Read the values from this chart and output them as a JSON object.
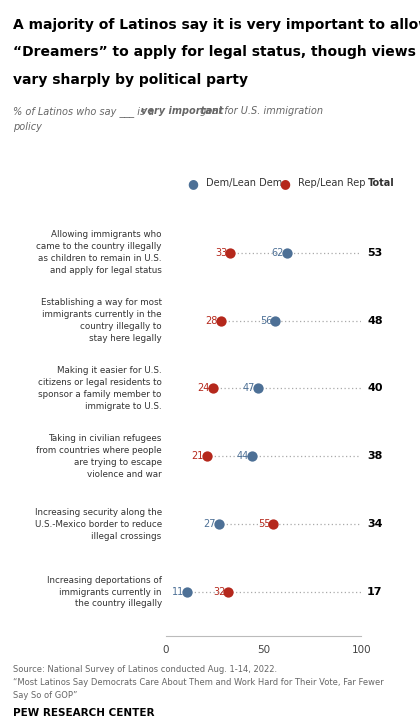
{
  "title_line1": "A majority of Latinos say it is very important to allow",
  "title_line2": "“Dreamers” to apply for legal status, though views",
  "title_line3": "vary sharply by political party",
  "categories": [
    "Allowing immigrants who\ncame to the country illegally\nas children to remain in U.S.\nand apply for legal status",
    "Establishing a way for most\nimmigrants currently in the\ncountry illegally to\nstay here legally",
    "Making it easier for U.S.\ncitizens or legal residents to\nsponsor a family member to\nimmigrate to U.S.",
    "Taking in civilian refugees\nfrom countries where people\nare trying to escape\nviolence and war",
    "Increasing security along the\nU.S.-Mexico border to reduce\nillegal crossings",
    "Increasing deportations of\nimmigrants currently in\nthe country illegally"
  ],
  "dem_values": [
    62,
    56,
    47,
    44,
    27,
    11
  ],
  "rep_values": [
    33,
    28,
    24,
    21,
    55,
    32
  ],
  "total_values": [
    53,
    48,
    40,
    38,
    34,
    17
  ],
  "dem_color": "#4d7096",
  "rep_color": "#b5281c",
  "dot_size": 55,
  "line_color": "#aaaaaa",
  "xticks": [
    0,
    50,
    100
  ],
  "source_line1": "Source: National Survey of Latinos conducted Aug. 1-14, 2022.",
  "source_line2": "“Most Latinos Say Democrats Care About Them and Work Hard for Their Vote, Far Fewer",
  "source_line3": "Say So of GOP”",
  "footer_text": "PEW RESEARCH CENTER",
  "legend_dem": "Dem/Lean Dem",
  "legend_rep": "Rep/Lean Rep",
  "legend_total": "Total",
  "bg_color": "#ffffff"
}
